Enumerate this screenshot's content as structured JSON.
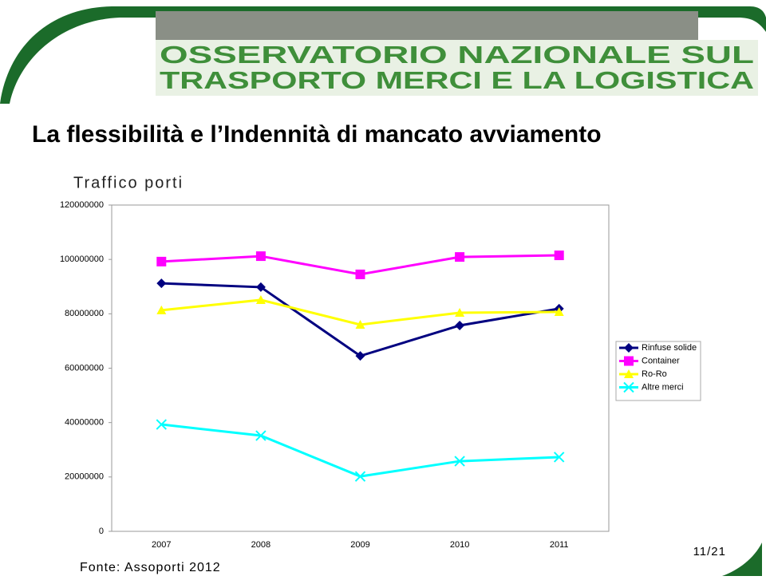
{
  "header": {
    "logo_line1": "OSSERVATORIO NAZIONALE SUL",
    "logo_line2": "TRASPORTO MERCI E LA LOGISTICA"
  },
  "title": "La flessibilità e l’Indennità di mancato avviamento",
  "chart_data": {
    "type": "line",
    "title": "Traffico porti",
    "categories": [
      "2007",
      "2008",
      "2009",
      "2010",
      "2011"
    ],
    "series": [
      {
        "name": "Rinfuse solide",
        "color": "#000080",
        "marker": "diamond",
        "values": [
          91200000,
          89800000,
          64500000,
          75700000,
          81900000
        ]
      },
      {
        "name": "Container",
        "color": "#ff00ff",
        "marker": "square",
        "values": [
          99200000,
          101200000,
          94500000,
          100900000,
          101500000
        ]
      },
      {
        "name": "Ro-Ro",
        "color": "#ffff00",
        "marker": "triangle",
        "values": [
          81300000,
          85100000,
          76000000,
          80400000,
          80700000
        ]
      },
      {
        "name": "Altre merci",
        "color": "#00ffff",
        "marker": "x",
        "values": [
          39300000,
          35200000,
          20200000,
          25800000,
          27300000
        ]
      }
    ],
    "ylim": [
      0,
      120000000
    ],
    "yticks": [
      0,
      20000000,
      40000000,
      60000000,
      80000000,
      100000000,
      120000000
    ],
    "grid": false,
    "legend": "right"
  },
  "source": "Fonte: Assoporti 2012",
  "page": "11/21"
}
